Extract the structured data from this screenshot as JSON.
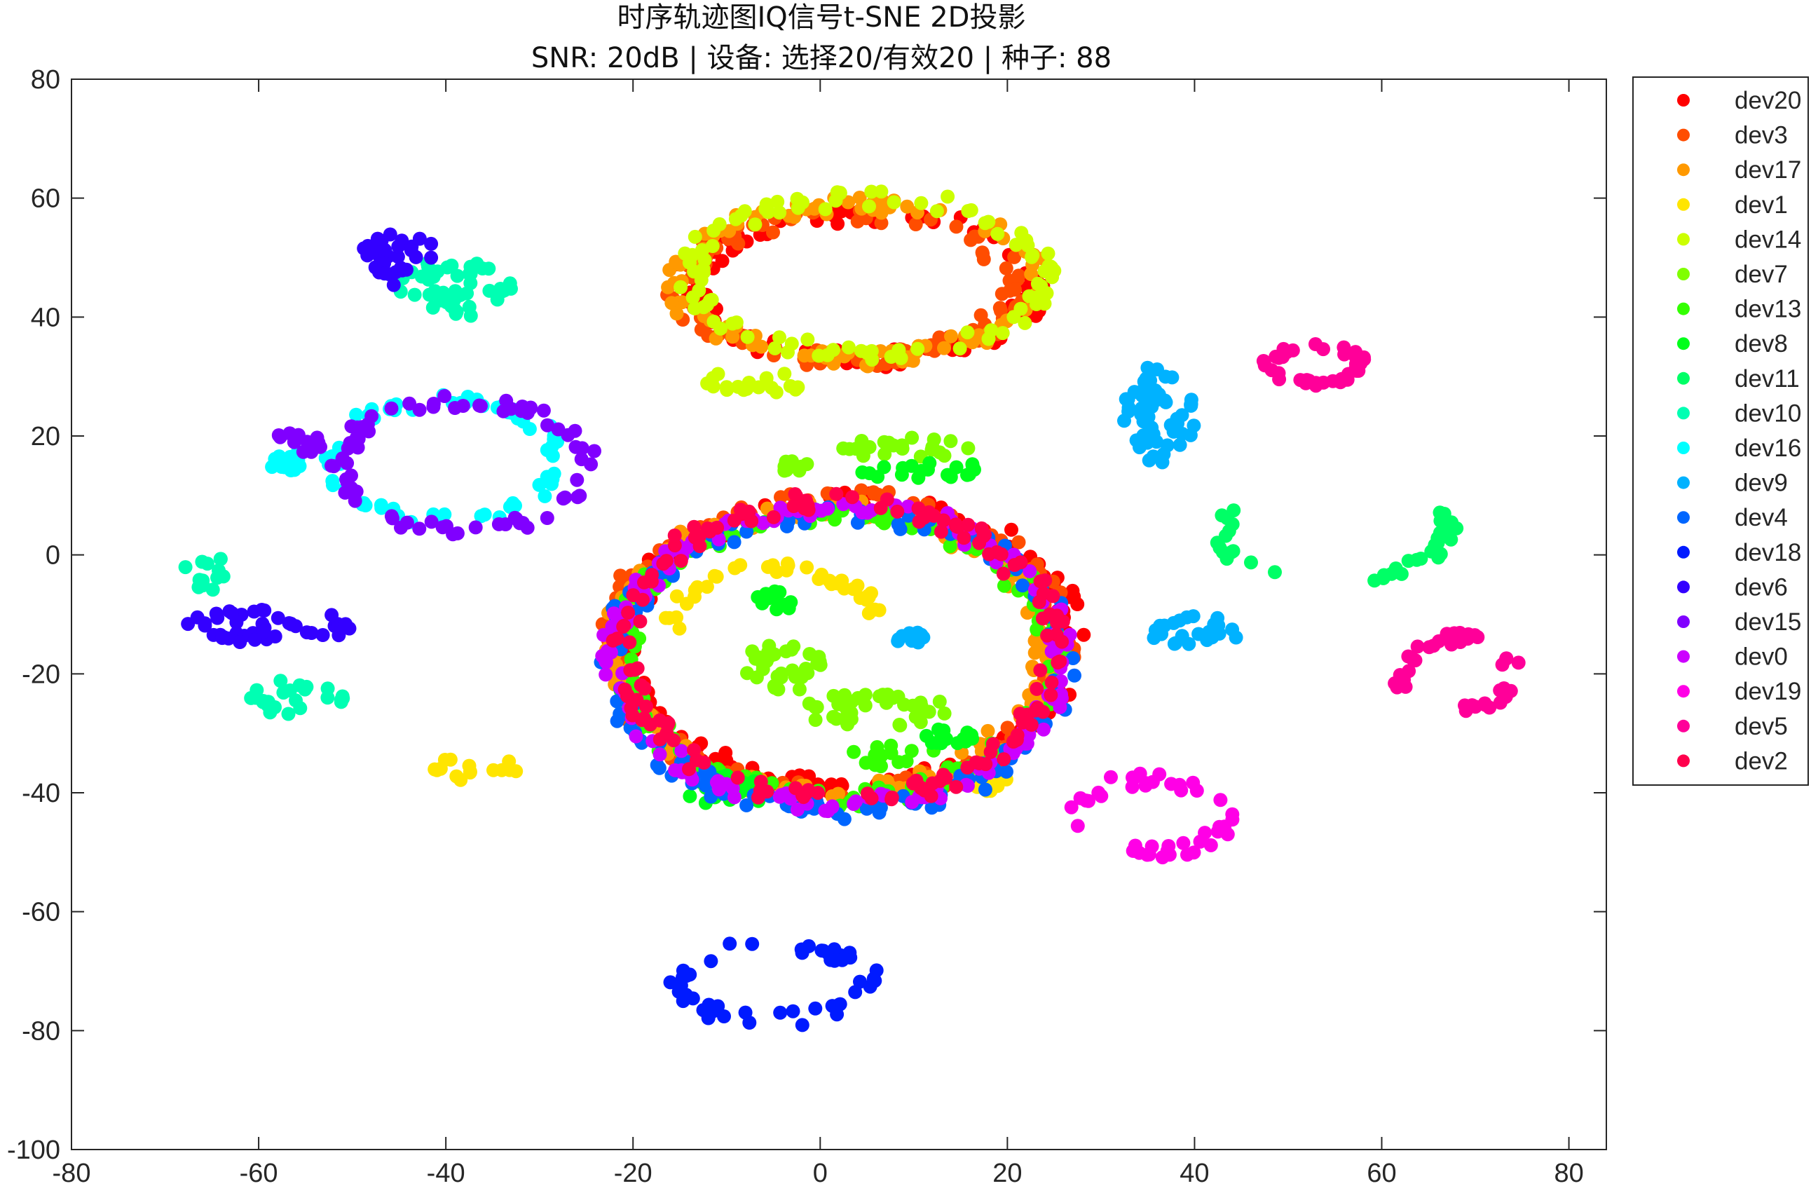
{
  "chart_data": {
    "type": "scatter",
    "title": "时序轨迹图IQ信号t-SNE 2D投影",
    "subtitle": "SNR: 20dB | 设备: 选择20/有效20 | 种子: 88",
    "xlabel": "",
    "ylabel": "",
    "xlim": [
      -80,
      84
    ],
    "ylim": [
      -100,
      80
    ],
    "xticks": [
      -80,
      -60,
      -40,
      -20,
      0,
      20,
      40,
      60,
      80
    ],
    "yticks": [
      80,
      60,
      40,
      20,
      0,
      -20,
      -40,
      -60,
      -80,
      -100
    ],
    "grid": false,
    "legend_position": "outside-top-right",
    "series": [
      {
        "name": "dev20",
        "color": "#ff0000",
        "clusters": [
          {
            "shape": "ring",
            "center": [
              5,
              45
            ],
            "radius": [
              18,
              12
            ],
            "thickness": 3
          },
          {
            "shape": "ring",
            "center": [
              3,
              -15
            ],
            "radius": [
              24,
              24
            ],
            "thickness": 3
          }
        ]
      },
      {
        "name": "dev3",
        "color": "#ff4d00",
        "clusters": [
          {
            "shape": "ring",
            "center": [
              3,
              45
            ],
            "radius": [
              18,
              12
            ],
            "thickness": 3
          },
          {
            "shape": "ring",
            "center": [
              2,
              -15
            ],
            "radius": [
              24,
              25
            ],
            "thickness": 3
          }
        ]
      },
      {
        "name": "dev17",
        "color": "#ff9900",
        "clusters": [
          {
            "shape": "ring",
            "center": [
              4,
              46
            ],
            "radius": [
              19,
              13
            ],
            "thickness": 3
          },
          {
            "shape": "ring",
            "center": [
              1,
              -16
            ],
            "radius": [
              23,
              24
            ],
            "thickness": 3
          }
        ]
      },
      {
        "name": "dev1",
        "color": "#ffe500",
        "clusters": [
          {
            "shape": "blob",
            "center": [
              -37,
              -36
            ],
            "radius": [
              5,
              2
            ]
          },
          {
            "shape": "arc",
            "center": [
              -5,
              -12
            ],
            "radius": [
              11,
              10
            ],
            "start": 15,
            "end": 180
          },
          {
            "shape": "blob",
            "center": [
              18,
              -38
            ],
            "radius": [
              2,
              2
            ]
          }
        ]
      },
      {
        "name": "dev14",
        "color": "#ccff00",
        "clusters": [
          {
            "shape": "ring",
            "center": [
              5,
              47
            ],
            "radius": [
              19,
              13
            ],
            "thickness": 3
          },
          {
            "shape": "blob",
            "center": [
              -7,
              29
            ],
            "radius": [
              6,
              2
            ]
          }
        ]
      },
      {
        "name": "dev7",
        "color": "#80ff00",
        "clusters": [
          {
            "shape": "blob",
            "center": [
              9,
              18
            ],
            "radius": [
              7,
              2
            ]
          },
          {
            "shape": "blob",
            "center": [
              -4,
              -19
            ],
            "radius": [
              5,
              4
            ]
          },
          {
            "shape": "blob",
            "center": [
              6,
              -26
            ],
            "radius": [
              8,
              3
            ]
          },
          {
            "shape": "blob",
            "center": [
              -3,
              15
            ],
            "radius": [
              2,
              1
            ]
          }
        ]
      },
      {
        "name": "dev13",
        "color": "#33ff00",
        "clusters": [
          {
            "shape": "ring",
            "center": [
              2,
              -17
            ],
            "radius": [
              23,
              24
            ],
            "thickness": 3
          },
          {
            "shape": "blob",
            "center": [
              8,
              -34
            ],
            "radius": [
              5,
              2
            ]
          }
        ]
      },
      {
        "name": "dev8",
        "color": "#00ff1a",
        "clusters": [
          {
            "shape": "blob",
            "center": [
              12,
              14
            ],
            "radius": [
              8,
              1.5
            ]
          },
          {
            "shape": "blob",
            "center": [
              -5,
              -8
            ],
            "radius": [
              2,
              2
            ]
          },
          {
            "shape": "blob",
            "center": [
              14,
              -31
            ],
            "radius": [
              3,
              2
            ]
          },
          {
            "shape": "blob",
            "center": [
              -10,
              -40
            ],
            "radius": [
              4,
              3
            ]
          }
        ]
      },
      {
        "name": "dev11",
        "color": "#00ff66",
        "clusters": [
          {
            "shape": "arc",
            "center": [
              55,
              4
            ],
            "radius": [
              12,
              8
            ],
            "start": 150,
            "end": 390
          }
        ]
      },
      {
        "name": "dev10",
        "color": "#00ffb3",
        "clusters": [
          {
            "shape": "blob",
            "center": [
              -39,
              45
            ],
            "radius": [
              6,
              5
            ]
          },
          {
            "shape": "blob",
            "center": [
              -65,
              -3
            ],
            "radius": [
              3,
              3
            ]
          },
          {
            "shape": "blob",
            "center": [
              -56,
              -24
            ],
            "radius": [
              5,
              3
            ]
          }
        ]
      },
      {
        "name": "dev16",
        "color": "#00ffff",
        "clusters": [
          {
            "shape": "ring",
            "center": [
              -40,
              16
            ],
            "radius": [
              12,
              10
            ],
            "thickness": 2
          },
          {
            "shape": "blob",
            "center": [
              -57,
              16
            ],
            "radius": [
              2,
              2
            ]
          }
        ]
      },
      {
        "name": "dev9",
        "color": "#00b2ff",
        "clusters": [
          {
            "shape": "blob",
            "center": [
              36,
              23
            ],
            "radius": [
              4,
              9
            ]
          },
          {
            "shape": "blob",
            "center": [
              40,
              -13
            ],
            "radius": [
              5,
              3
            ]
          },
          {
            "shape": "blob",
            "center": [
              10,
              -14
            ],
            "radius": [
              2,
              1
            ]
          }
        ]
      },
      {
        "name": "dev4",
        "color": "#0066ff",
        "clusters": [
          {
            "shape": "ring",
            "center": [
              2,
              -18
            ],
            "radius": [
              24,
              25
            ],
            "thickness": 3
          }
        ]
      },
      {
        "name": "dev18",
        "color": "#001aff",
        "clusters": [
          {
            "shape": "ring",
            "center": [
              -5,
              -72
            ],
            "radius": [
              10,
              6
            ],
            "thickness": 2.5
          }
        ]
      },
      {
        "name": "dev6",
        "color": "#3300ff",
        "clusters": [
          {
            "shape": "blob",
            "center": [
              -45,
              50
            ],
            "radius": [
              4,
              5
            ]
          },
          {
            "shape": "blob",
            "center": [
              -59,
              -12
            ],
            "radius": [
              9,
              3
            ]
          }
        ]
      },
      {
        "name": "dev15",
        "color": "#8000ff",
        "clusters": [
          {
            "shape": "ring",
            "center": [
              -38,
              15
            ],
            "radius": [
              13,
              11
            ],
            "thickness": 2.5
          },
          {
            "shape": "blob",
            "center": [
              -56,
              19
            ],
            "radius": [
              3,
              2
            ]
          }
        ]
      },
      {
        "name": "dev0",
        "color": "#cc00ff",
        "clusters": [
          {
            "shape": "ring",
            "center": [
              2,
              -17
            ],
            "radius": [
              24,
              25
            ],
            "thickness": 3
          }
        ]
      },
      {
        "name": "dev19",
        "color": "#ff00e6",
        "clusters": [
          {
            "shape": "ring",
            "center": [
              35,
              -44
            ],
            "radius": [
              8,
              6
            ],
            "thickness": 2.5
          }
        ]
      },
      {
        "name": "dev5",
        "color": "#ff0099",
        "clusters": [
          {
            "shape": "ring",
            "center": [
              53,
              32
            ],
            "radius": [
              5,
              3
            ],
            "thickness": 1.5
          },
          {
            "shape": "arc",
            "center": [
              68,
              -20
            ],
            "radius": [
              6,
              6
            ],
            "start": -90,
            "end": 200
          }
        ]
      },
      {
        "name": "dev2",
        "color": "#ff004d",
        "clusters": [
          {
            "shape": "ring",
            "center": [
              2,
              -16
            ],
            "radius": [
              23,
              25
            ],
            "thickness": 3
          }
        ]
      }
    ]
  }
}
